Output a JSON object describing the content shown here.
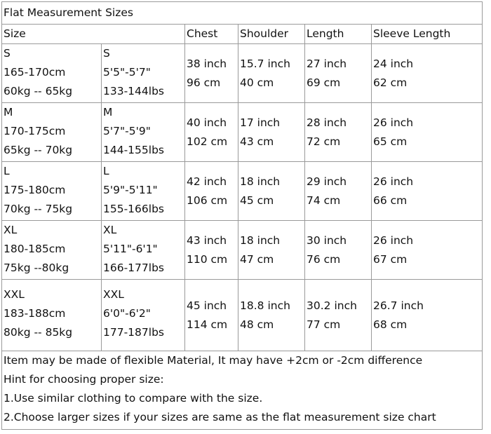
{
  "title": "Flat Measurement Sizes",
  "header": [
    "Size",
    "Chest",
    "Shoulder",
    "Length",
    "Sleeve Length"
  ],
  "rows": [
    {
      "size_metric": [
        "S",
        "165-170cm",
        "60kg -- 65kg"
      ],
      "size_imperial": [
        "S",
        "5'5\"-5'7\"",
        "133-144lbs"
      ],
      "chest": [
        "38 inch",
        "96 cm"
      ],
      "shoulder": [
        "15.7 inch",
        "40 cm"
      ],
      "length": [
        "27 inch",
        "69 cm"
      ],
      "sleeve_length": [
        "24 inch",
        "62 cm"
      ]
    },
    {
      "size_metric": [
        "M",
        "170-175cm",
        "65kg -- 70kg"
      ],
      "size_imperial": [
        "M",
        "5'7\"-5'9\"",
        "144-155lbs"
      ],
      "chest": [
        "40 inch",
        "102 cm"
      ],
      "shoulder": [
        "17 inch",
        "43 cm"
      ],
      "length": [
        "28 inch",
        "72 cm"
      ],
      "sleeve_length": [
        "26 inch",
        "65 cm"
      ]
    },
    {
      "size_metric": [
        "L",
        "175-180cm",
        "70kg -- 75kg"
      ],
      "size_imperial": [
        "L",
        "5'9\"-5'11\"",
        "155-166lbs"
      ],
      "chest": [
        "42 inch",
        "106 cm"
      ],
      "shoulder": [
        "18 inch",
        "45 cm"
      ],
      "length": [
        "29 inch",
        "74 cm"
      ],
      "sleeve_length": [
        "26 inch",
        "66 cm"
      ]
    },
    {
      "size_metric": [
        "XL",
        "180-185cm",
        "75kg --80kg"
      ],
      "size_imperial": [
        "XL",
        "5'11\"-6'1\"",
        "166-177lbs"
      ],
      "chest": [
        "43 inch",
        "110 cm"
      ],
      "shoulder": [
        "18 inch",
        "47 cm"
      ],
      "length": [
        "30 inch",
        "76 cm"
      ],
      "sleeve_length": [
        "26 inch",
        "67 cm"
      ]
    },
    {
      "size_metric": [
        "XXL",
        "183-188cm",
        "80kg -- 85kg"
      ],
      "size_imperial": [
        "XXL",
        "6'0\"-6'2\"",
        "177-187lbs"
      ],
      "chest": [
        "45 inch",
        "114 cm"
      ],
      "shoulder": [
        "18.8 inch",
        "48 cm"
      ],
      "length": [
        "30.2 inch",
        "77 cm"
      ],
      "sleeve_length": [
        "26.7 inch",
        "68 cm"
      ]
    }
  ],
  "notes": [
    "Item may be made of flexible Material, It may have +2cm or -2cm difference",
    "Hint for choosing proper size:",
    "1.Use similar clothing to compare with the size.",
    "2.Choose larger sizes if your sizes are same as the flat measurement size chart"
  ]
}
